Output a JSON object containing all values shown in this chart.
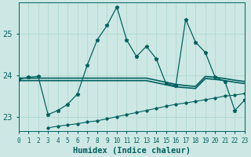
{
  "xlabel": "Humidex (Indice chaleur)",
  "background_color": "#cde8e4",
  "grid_color": "#b0d8d0",
  "line_color": "#006060",
  "xlim": [
    0,
    23
  ],
  "ylim": [
    22.65,
    25.75
  ],
  "yticks": [
    23,
    24,
    25
  ],
  "xtick_labels": [
    "0",
    "1",
    "2",
    "3",
    "4",
    "5",
    "6",
    "7",
    "8",
    "9",
    "10",
    "11",
    "12",
    "13",
    "14",
    "15",
    "16",
    "17",
    "18",
    "19",
    "20",
    "21",
    "22",
    "23"
  ],
  "series1_x": [
    0,
    1,
    2,
    3,
    4,
    5,
    6,
    7,
    8,
    9,
    10,
    11,
    12,
    13,
    14,
    15,
    16,
    17,
    18,
    19,
    20,
    21,
    22,
    23
  ],
  "series1_y": [
    23.9,
    23.95,
    23.97,
    23.05,
    23.15,
    23.3,
    23.55,
    24.25,
    24.85,
    25.2,
    25.65,
    24.85,
    24.45,
    24.7,
    24.4,
    23.8,
    23.75,
    25.35,
    24.8,
    24.55,
    23.95,
    23.85,
    23.15,
    23.4
  ],
  "series2_x": [
    0,
    1,
    2,
    3,
    4,
    5,
    6,
    7,
    8,
    9,
    10,
    11,
    12,
    13,
    14,
    15,
    16,
    17,
    18,
    19,
    20,
    21,
    22,
    23
  ],
  "series2_y": [
    23.93,
    23.93,
    23.93,
    23.93,
    23.93,
    23.93,
    23.93,
    23.93,
    23.93,
    23.93,
    23.93,
    23.93,
    23.93,
    23.93,
    23.88,
    23.83,
    23.78,
    23.75,
    23.73,
    23.97,
    23.95,
    23.92,
    23.88,
    23.85
  ],
  "series2b_x": [
    0,
    1,
    2,
    3,
    4,
    5,
    6,
    7,
    8,
    9,
    10,
    11,
    12,
    13,
    14,
    15,
    16,
    17,
    18,
    19,
    20,
    21,
    22,
    23
  ],
  "series2b_y": [
    23.87,
    23.87,
    23.87,
    23.87,
    23.87,
    23.87,
    23.87,
    23.87,
    23.87,
    23.87,
    23.87,
    23.87,
    23.87,
    23.87,
    23.82,
    23.77,
    23.72,
    23.7,
    23.68,
    23.92,
    23.9,
    23.87,
    23.83,
    23.8
  ],
  "series3_x": [
    3,
    4,
    5,
    6,
    7,
    8,
    9,
    10,
    11,
    12,
    13,
    14,
    15,
    16,
    17,
    18,
    19,
    20,
    21,
    22,
    23
  ],
  "series3_y": [
    22.73,
    22.77,
    22.8,
    22.83,
    22.87,
    22.9,
    22.95,
    23.0,
    23.05,
    23.1,
    23.15,
    23.2,
    23.25,
    23.3,
    23.33,
    23.37,
    23.41,
    23.45,
    23.5,
    23.52,
    23.56
  ]
}
